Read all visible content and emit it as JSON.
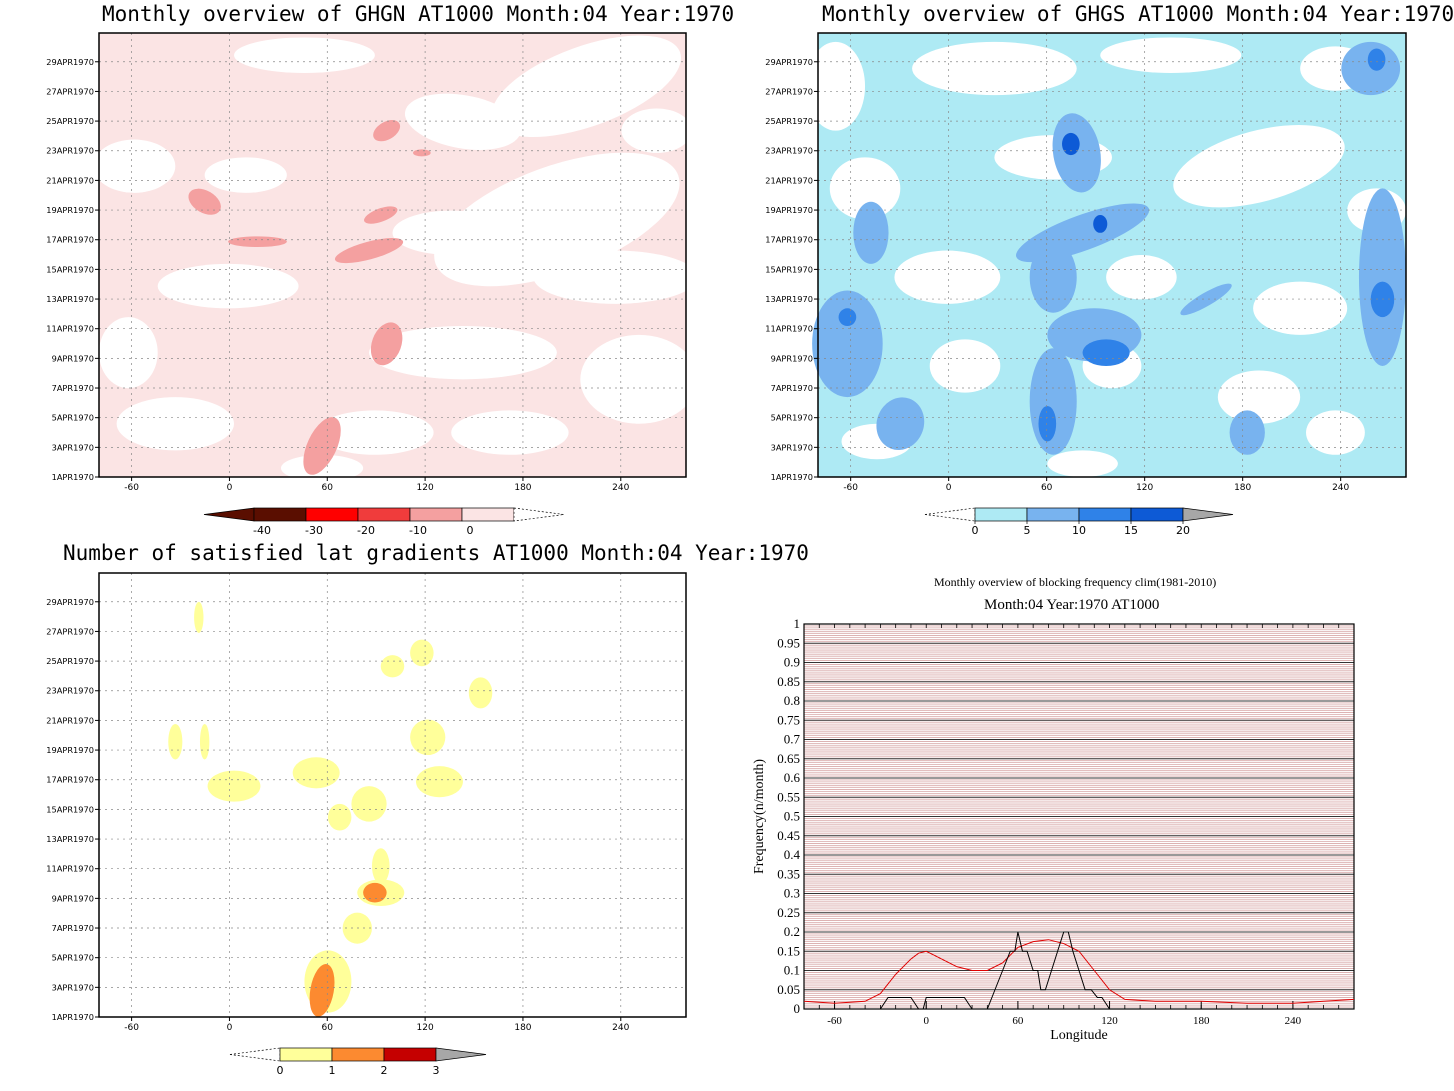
{
  "colors": {
    "ghgn": [
      "#5a0e00",
      "#ff0000",
      "#f03c3c",
      "#f4a0a0",
      "#fbe4e4"
    ],
    "ghgs": [
      "#aeeaf4",
      "#78b3ef",
      "#2f82e8",
      "#0d5ad6",
      "#a7a7a7"
    ],
    "lat": [
      "#ffff9a",
      "#fc8a30",
      "#c50000",
      "#a7a7a7"
    ],
    "blocking_bg_line": "#d8a8a8",
    "blocking_red": "#e00000",
    "blocking_black": "#000000"
  },
  "panels": {
    "ghgn": {
      "title": "Monthly overview of GHGN AT1000 Month:04 Year:1970",
      "colorbar_labels": [
        "-40",
        "-30",
        "-20",
        "-10",
        "0"
      ]
    },
    "ghgs": {
      "title": "Monthly overview of GHGS AT1000 Month:04 Year:1970",
      "colorbar_labels": [
        "0",
        "5",
        "10",
        "15",
        "20"
      ]
    },
    "lat": {
      "title": "Number of satisfied lat gradients AT1000 Month:04 Year:1970",
      "colorbar_labels": [
        "0",
        "1",
        "2",
        "3"
      ]
    },
    "blocking": {
      "title_line1": "Monthly overview of blocking frequency clim(1981-2010)",
      "title_line2": "Month:04 Year:1970  AT1000"
    }
  },
  "chart_data": [
    {
      "type": "heatmap",
      "title": "Monthly overview of GHGN AT1000 Month:04 Year:1970",
      "x_ticks": [
        "-60",
        "0",
        "60",
        "120",
        "180",
        "240"
      ],
      "y_ticks": [
        "1APR1970",
        "3APR1970",
        "5APR1970",
        "7APR1970",
        "9APR1970",
        "11APR1970",
        "13APR1970",
        "15APR1970",
        "17APR1970",
        "19APR1970",
        "21APR1970",
        "23APR1970",
        "25APR1970",
        "27APR1970",
        "29APR1970"
      ],
      "xlim": [
        -80,
        280
      ],
      "colorbar": [
        -40,
        -30,
        -20,
        -10,
        0
      ]
    },
    {
      "type": "heatmap",
      "title": "Monthly overview of GHGS AT1000 Month:04 Year:1970",
      "x_ticks": [
        "-60",
        "0",
        "60",
        "120",
        "180",
        "240"
      ],
      "y_ticks": [
        "1APR1970",
        "3APR1970",
        "5APR1970",
        "7APR1970",
        "9APR1970",
        "11APR1970",
        "13APR1970",
        "15APR1970",
        "17APR1970",
        "19APR1970",
        "21APR1970",
        "23APR1970",
        "25APR1970",
        "27APR1970",
        "29APR1970"
      ],
      "xlim": [
        -80,
        280
      ],
      "colorbar": [
        0,
        5,
        10,
        15,
        20
      ]
    },
    {
      "type": "heatmap",
      "title": "Number of satisfied lat gradients AT1000 Month:04 Year:1970",
      "x_ticks": [
        "-60",
        "0",
        "60",
        "120",
        "180",
        "240"
      ],
      "y_ticks": [
        "1APR1970",
        "3APR1970",
        "5APR1970",
        "7APR1970",
        "9APR1970",
        "11APR1970",
        "13APR1970",
        "15APR1970",
        "17APR1970",
        "19APR1970",
        "21APR1970",
        "23APR1970",
        "25APR1970",
        "27APR1970",
        "29APR1970"
      ],
      "xlim": [
        -80,
        280
      ],
      "colorbar": [
        0,
        1,
        2,
        3
      ]
    },
    {
      "type": "line",
      "title": "Monthly overview of blocking frequency clim(1981-2010)",
      "subtitle": "Month:04 Year:1970  AT1000",
      "xlabel": "Longitude",
      "ylabel": "Frequency(n/month)",
      "xlim": [
        -80,
        280
      ],
      "ylim": [
        0,
        1
      ],
      "x_ticks": [
        "-60",
        "0",
        "60",
        "120",
        "180",
        "240"
      ],
      "y_ticks": [
        "0",
        "0.05",
        "0.1",
        "0.15",
        "0.2",
        "0.25",
        "0.3",
        "0.35",
        "0.4",
        "0.45",
        "0.5",
        "0.55",
        "0.6",
        "0.65",
        "0.7",
        "0.75",
        "0.8",
        "0.85",
        "0.9",
        "0.95",
        "1"
      ],
      "series": [
        {
          "color": "#e00000",
          "x": [
            -80,
            -60,
            -40,
            -30,
            -20,
            -10,
            -5,
            0,
            5,
            10,
            20,
            30,
            40,
            50,
            60,
            70,
            80,
            90,
            100,
            110,
            120,
            130,
            150,
            180,
            210,
            240,
            260,
            280
          ],
          "y": [
            0.02,
            0.015,
            0.02,
            0.04,
            0.09,
            0.13,
            0.145,
            0.15,
            0.14,
            0.13,
            0.11,
            0.1,
            0.1,
            0.12,
            0.16,
            0.175,
            0.18,
            0.17,
            0.15,
            0.1,
            0.05,
            0.025,
            0.02,
            0.02,
            0.015,
            0.015,
            0.02,
            0.025
          ]
        },
        {
          "color": "#000000",
          "x": [
            -80,
            -30,
            -25,
            -15,
            -10,
            -5,
            -2,
            0,
            5,
            10,
            20,
            25,
            30,
            40,
            45,
            50,
            55,
            58,
            60,
            63,
            66,
            70,
            73,
            75,
            78,
            82,
            86,
            90,
            93,
            96,
            100,
            104,
            108,
            112,
            115,
            120,
            280
          ],
          "y": [
            0,
            0,
            0.03,
            0.03,
            0.03,
            0,
            0,
            0.03,
            0.03,
            0.03,
            0.03,
            0.03,
            0,
            0,
            0.05,
            0.1,
            0.15,
            0.15,
            0.2,
            0.15,
            0.15,
            0.1,
            0.1,
            0.05,
            0.05,
            0.1,
            0.15,
            0.2,
            0.2,
            0.15,
            0.1,
            0.05,
            0.05,
            0.03,
            0.03,
            0,
            0
          ]
        }
      ]
    }
  ]
}
